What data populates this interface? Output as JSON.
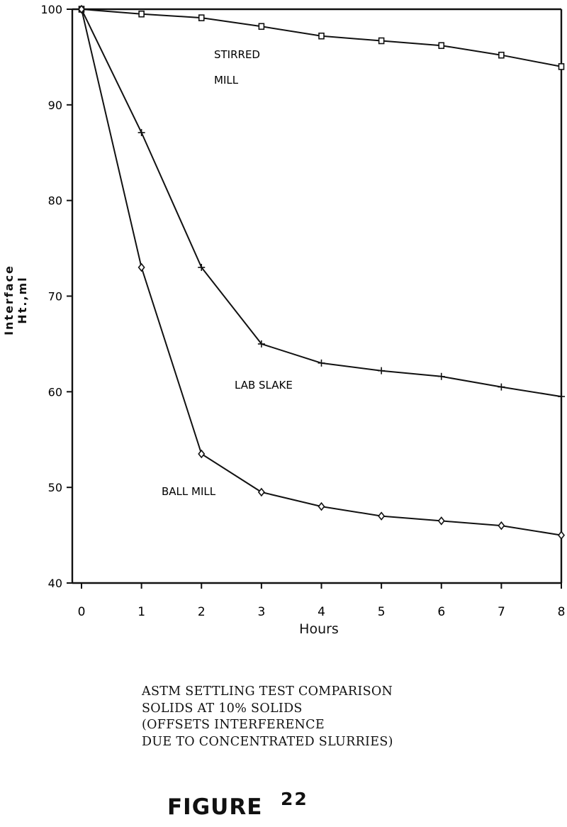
{
  "chart_data": {
    "type": "line",
    "xlabel": "Hours",
    "ylabel": "Interface Ht.,ml",
    "xlim": [
      0,
      8
    ],
    "ylim": [
      40,
      100
    ],
    "x_ticks": [
      0,
      1,
      2,
      3,
      4,
      5,
      6,
      7,
      8
    ],
    "y_ticks": [
      40,
      50,
      60,
      70,
      80,
      90,
      100
    ],
    "grid": false,
    "series": [
      {
        "name": "STIRRED MILL",
        "marker": "square",
        "x": [
          0,
          1,
          2,
          3,
          4,
          5,
          6,
          7,
          8
        ],
        "y": [
          100,
          99.5,
          99.1,
          98.2,
          97.2,
          96.7,
          96.2,
          95.2,
          94.0
        ]
      },
      {
        "name": "LAB SLAKE",
        "marker": "plus",
        "x": [
          0,
          1,
          2,
          3,
          4,
          5,
          6,
          7,
          8
        ],
        "y": [
          100,
          87.1,
          73.0,
          65.0,
          63.0,
          62.2,
          61.6,
          60.5,
          59.5
        ]
      },
      {
        "name": "BALL MILL",
        "marker": "diamond",
        "x": [
          0,
          1,
          2,
          3,
          4,
          5,
          6,
          7,
          8
        ],
        "y": [
          100,
          73.0,
          53.5,
          49.5,
          48.0,
          47.0,
          46.5,
          46.0,
          45.0
        ]
      }
    ],
    "annotations": [
      "STIRRED",
      "MILL",
      "LAB SLAKE",
      "BALL MILL"
    ]
  },
  "labels": {
    "stirred_line1": "STIRRED",
    "stirred_line2": "MILL",
    "lab_slake": "LAB SLAKE",
    "ball_mill": "BALL MILL"
  },
  "caption": {
    "line1": "ASTM SETTLING TEST COMPARISON",
    "line2": "SOLIDS AT 10% SOLIDS",
    "line3": "(OFFSETS INTERFERENCE",
    "line4": "DUE TO CONCENTRATED SLURRIES)"
  },
  "figure": {
    "word": "FIGURE",
    "number": "22"
  }
}
